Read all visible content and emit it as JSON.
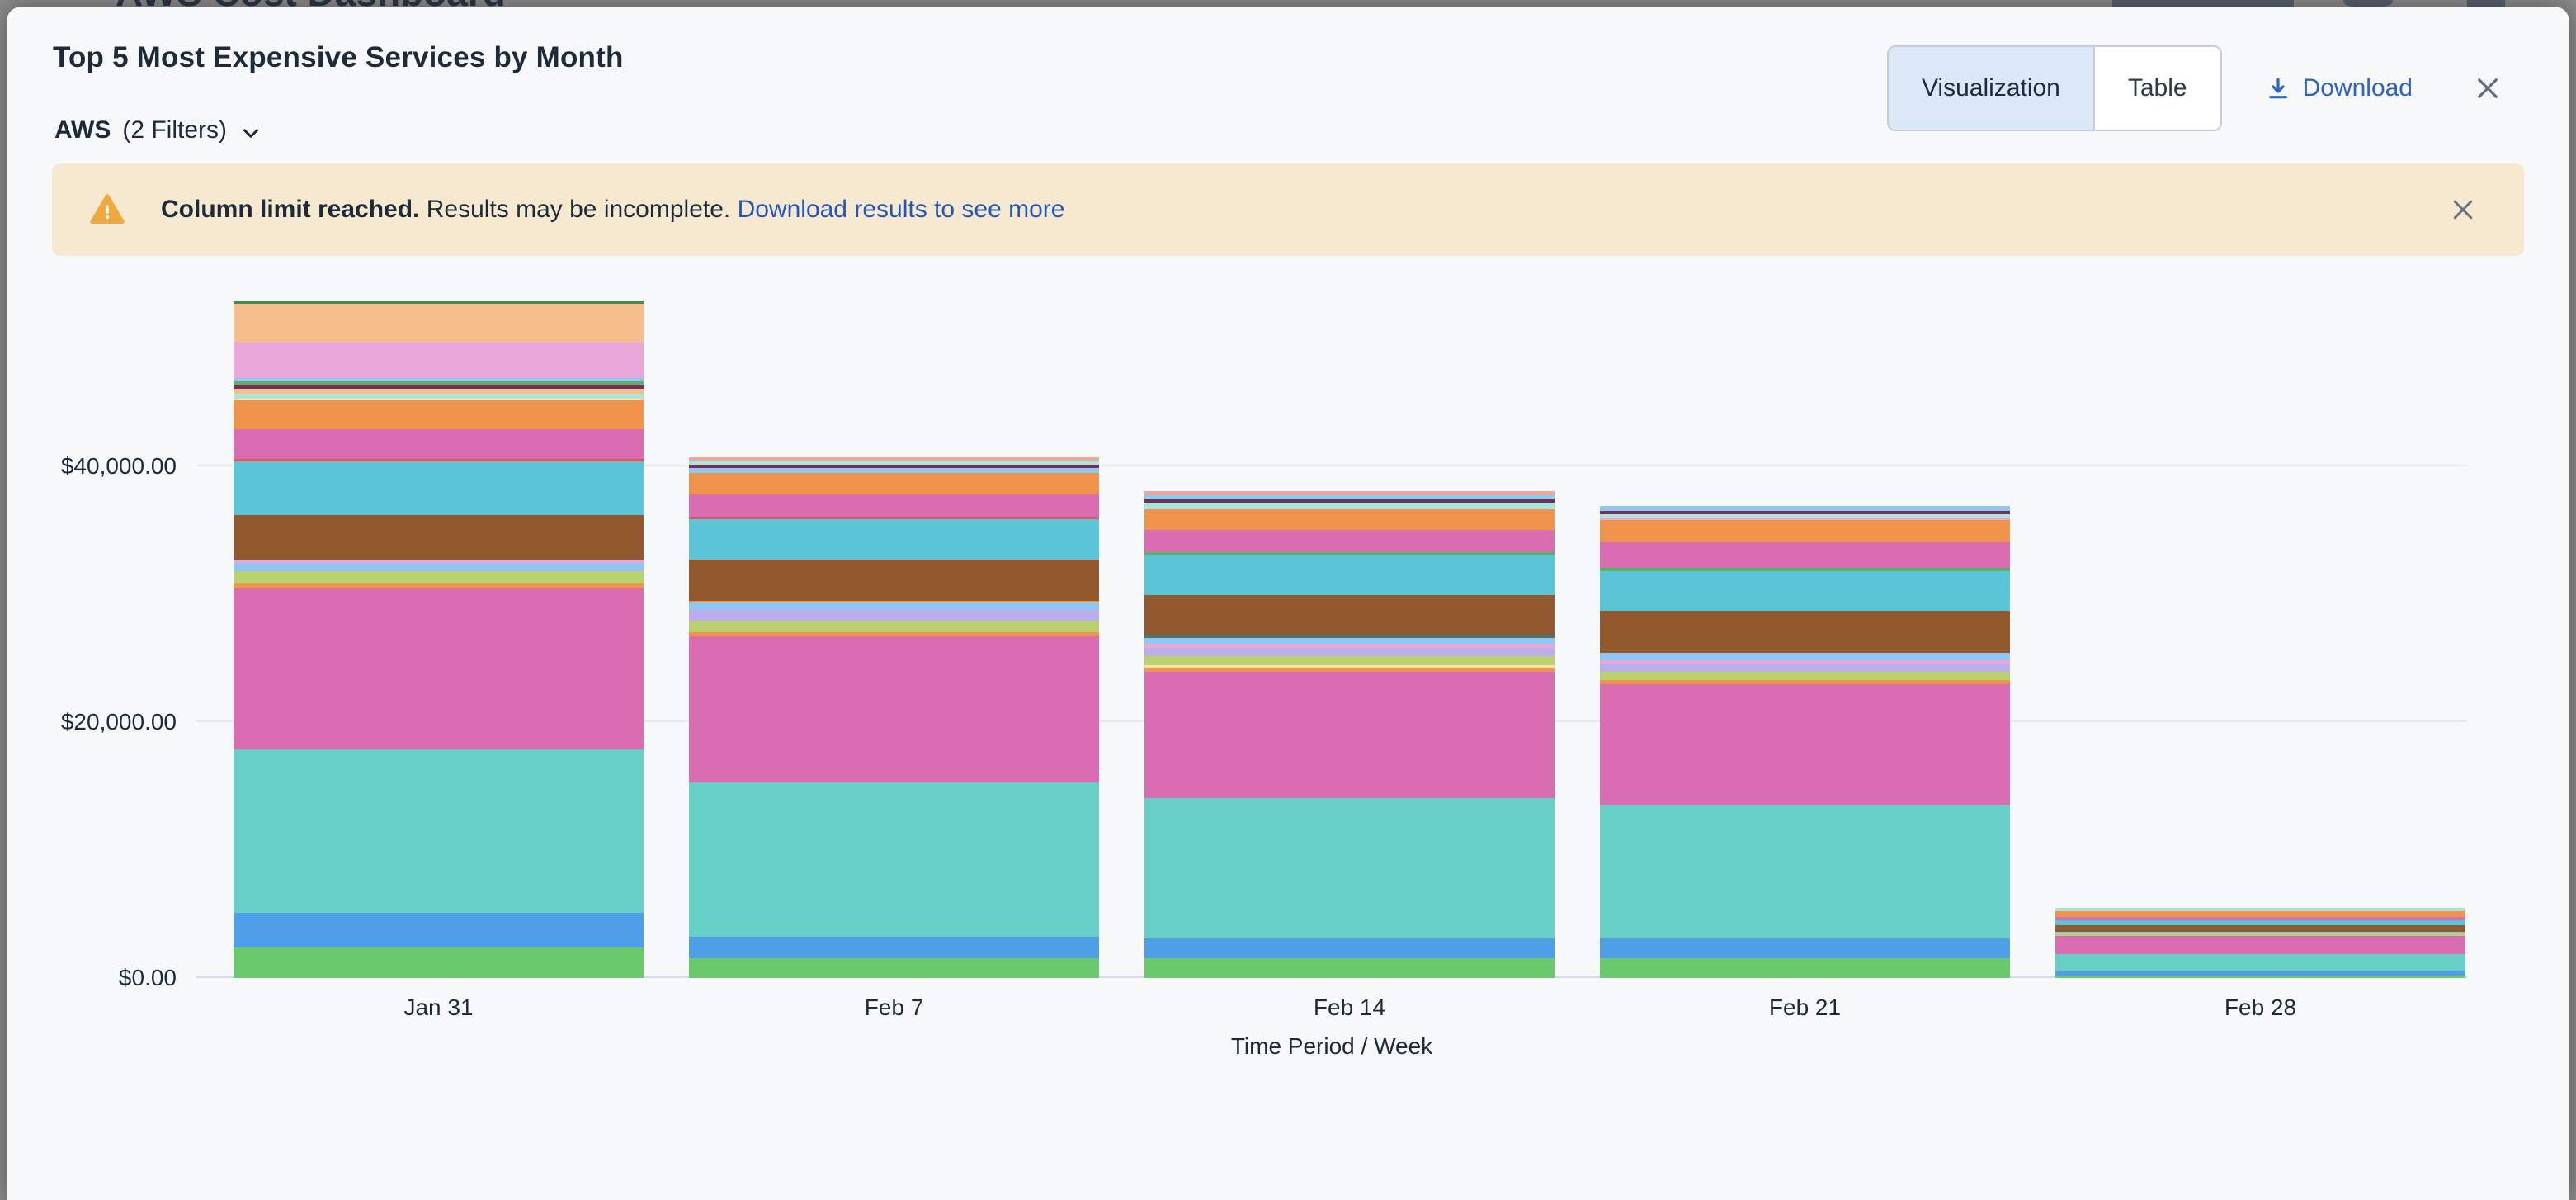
{
  "background_page": {
    "title": "AWS Cost Dashboard"
  },
  "modal": {
    "title": "Top 5 Most Expensive Services by Month",
    "filter": {
      "scope": "AWS",
      "label": "(2 Filters)"
    },
    "view_toggle": {
      "options": [
        "Visualization",
        "Table"
      ],
      "active": "Visualization"
    },
    "download_label": "Download",
    "banner": {
      "bold_text": "Column limit reached.",
      "text": "Results may be incomplete.",
      "link_text": "Download results to see more"
    },
    "icons": {
      "chevron_down": "chevron-down-icon",
      "download": "download-icon",
      "close": "close-icon",
      "warning": "warning-triangle-icon"
    },
    "colors": {
      "accent_blue": "#2b63c7",
      "banner_bg": "#f7e9cf",
      "warning": "#efa93f",
      "active_toggle_bg": "#dbe8f8"
    }
  },
  "chart_data": {
    "type": "bar",
    "stacked": true,
    "title": "Top 5 Most Expensive Services by Month",
    "xlabel": "Time Period / Week",
    "ylabel": "",
    "categories": [
      "Jan 31",
      "Feb 7",
      "Feb 14",
      "Feb 21",
      "Feb 28"
    ],
    "y_ticks": [
      {
        "value": 0,
        "label": "$0.00"
      },
      {
        "value": 20000,
        "label": "$20,000.00"
      },
      {
        "value": 40000,
        "label": "$40,000.00"
      }
    ],
    "ylim": [
      0,
      53000
    ],
    "grid": true,
    "legend": "none",
    "palette": {
      "green": "#69c96c",
      "blue": "#4f9fe8",
      "teal": "#68cfc7",
      "magenta": "#da6cb2",
      "orange": "#f0944d",
      "yellowGreen": "#b9d16f",
      "lavender": "#bcaeec",
      "lightBlue": "#8fc6f2",
      "orchid": "#e9a6d8",
      "brown": "#92592e",
      "cyan": "#5bc4d6",
      "red": "#dc5b54",
      "lightTeal": "#abe4dc",
      "lightYellow": "#f8e6aa",
      "peach": "#f6be8d",
      "maroon": "#703156",
      "midGreen": "#5faf6b",
      "darkGreen": "#3e8e4c",
      "salmon": "#eda89e",
      "grayTeal": "#53726a"
    },
    "bars": [
      {
        "category": "Jan 31",
        "total": 52925,
        "segments": [
          {
            "color": "green",
            "value": 2400
          },
          {
            "color": "blue",
            "value": 2700
          },
          {
            "color": "teal",
            "value": 12800
          },
          {
            "color": "magenta",
            "value": 12550
          },
          {
            "color": "orange",
            "value": 390
          },
          {
            "color": "yellowGreen",
            "value": 970
          },
          {
            "color": "lightBlue",
            "value": 650
          },
          {
            "color": "orchid",
            "value": 260
          },
          {
            "color": "brown",
            "value": 3500
          },
          {
            "color": "cyan",
            "value": 4150
          },
          {
            "color": "red",
            "value": 195
          },
          {
            "color": "magenta",
            "value": 2330
          },
          {
            "color": "orange",
            "value": 2260
          },
          {
            "color": "lightYellow",
            "value": 130
          },
          {
            "color": "lightTeal",
            "value": 390
          },
          {
            "color": "peach",
            "value": 390
          },
          {
            "color": "maroon",
            "value": 325
          },
          {
            "color": "midGreen",
            "value": 260
          },
          {
            "color": "lightBlue",
            "value": 260
          },
          {
            "color": "orchid",
            "value": 2780
          },
          {
            "color": "peach",
            "value": 3040
          },
          {
            "color": "darkGreen",
            "value": 195
          }
        ]
      },
      {
        "category": "Feb 7",
        "total": 40700,
        "segments": [
          {
            "color": "green",
            "value": 1550
          },
          {
            "color": "blue",
            "value": 1680
          },
          {
            "color": "teal",
            "value": 12080
          },
          {
            "color": "magenta",
            "value": 11430
          },
          {
            "color": "orange",
            "value": 320
          },
          {
            "color": "yellowGreen",
            "value": 900
          },
          {
            "color": "lavender",
            "value": 840
          },
          {
            "color": "lightBlue",
            "value": 580
          },
          {
            "color": "orange",
            "value": 130
          },
          {
            "color": "brown",
            "value": 3230
          },
          {
            "color": "cyan",
            "value": 3170
          },
          {
            "color": "red",
            "value": 130
          },
          {
            "color": "magenta",
            "value": 1750
          },
          {
            "color": "orange",
            "value": 1680
          },
          {
            "color": "lightBlue",
            "value": 390
          },
          {
            "color": "maroon",
            "value": 260
          },
          {
            "color": "lightTeal",
            "value": 320
          },
          {
            "color": "salmon",
            "value": 260
          }
        ]
      },
      {
        "category": "Feb 14",
        "total": 38090,
        "segments": [
          {
            "color": "green",
            "value": 1550
          },
          {
            "color": "blue",
            "value": 1550
          },
          {
            "color": "teal",
            "value": 10980
          },
          {
            "color": "magenta",
            "value": 9880
          },
          {
            "color": "orange",
            "value": 320
          },
          {
            "color": "lightYellow",
            "value": 195
          },
          {
            "color": "yellowGreen",
            "value": 710
          },
          {
            "color": "lavender",
            "value": 650
          },
          {
            "color": "orchid",
            "value": 320
          },
          {
            "color": "lightBlue",
            "value": 450
          },
          {
            "color": "grayTeal",
            "value": 260
          },
          {
            "color": "brown",
            "value": 3100
          },
          {
            "color": "cyan",
            "value": 3160
          },
          {
            "color": "midGreen",
            "value": 195
          },
          {
            "color": "magenta",
            "value": 1740
          },
          {
            "color": "orange",
            "value": 1610
          },
          {
            "color": "lightTeal",
            "value": 520
          },
          {
            "color": "maroon",
            "value": 260
          },
          {
            "color": "lightBlue",
            "value": 320
          },
          {
            "color": "salmon",
            "value": 320
          }
        ]
      },
      {
        "category": "Feb 21",
        "total": 36880,
        "segments": [
          {
            "color": "green",
            "value": 1550
          },
          {
            "color": "blue",
            "value": 1550
          },
          {
            "color": "teal",
            "value": 10460
          },
          {
            "color": "magenta",
            "value": 9430
          },
          {
            "color": "orange",
            "value": 320
          },
          {
            "color": "yellowGreen",
            "value": 650
          },
          {
            "color": "lavender",
            "value": 650
          },
          {
            "color": "orchid",
            "value": 260
          },
          {
            "color": "lightBlue",
            "value": 580
          },
          {
            "color": "brown",
            "value": 3230
          },
          {
            "color": "cyan",
            "value": 3100
          },
          {
            "color": "midGreen",
            "value": 260
          },
          {
            "color": "magenta",
            "value": 2000
          },
          {
            "color": "orange",
            "value": 1740
          },
          {
            "color": "orchid",
            "value": 130
          },
          {
            "color": "lightTeal",
            "value": 320
          },
          {
            "color": "maroon",
            "value": 260
          },
          {
            "color": "lightBlue",
            "value": 390
          }
        ]
      },
      {
        "category": "Feb 28",
        "total": 5500,
        "segments": [
          {
            "color": "green",
            "value": 195
          },
          {
            "color": "blue",
            "value": 390
          },
          {
            "color": "teal",
            "value": 1290
          },
          {
            "color": "magenta",
            "value": 1420
          },
          {
            "color": "yellowGreen",
            "value": 195
          },
          {
            "color": "lightBlue",
            "value": 130
          },
          {
            "color": "brown",
            "value": 520
          },
          {
            "color": "cyan",
            "value": 390
          },
          {
            "color": "magenta",
            "value": 260
          },
          {
            "color": "orange",
            "value": 450
          },
          {
            "color": "lightTeal",
            "value": 260
          }
        ]
      }
    ]
  }
}
